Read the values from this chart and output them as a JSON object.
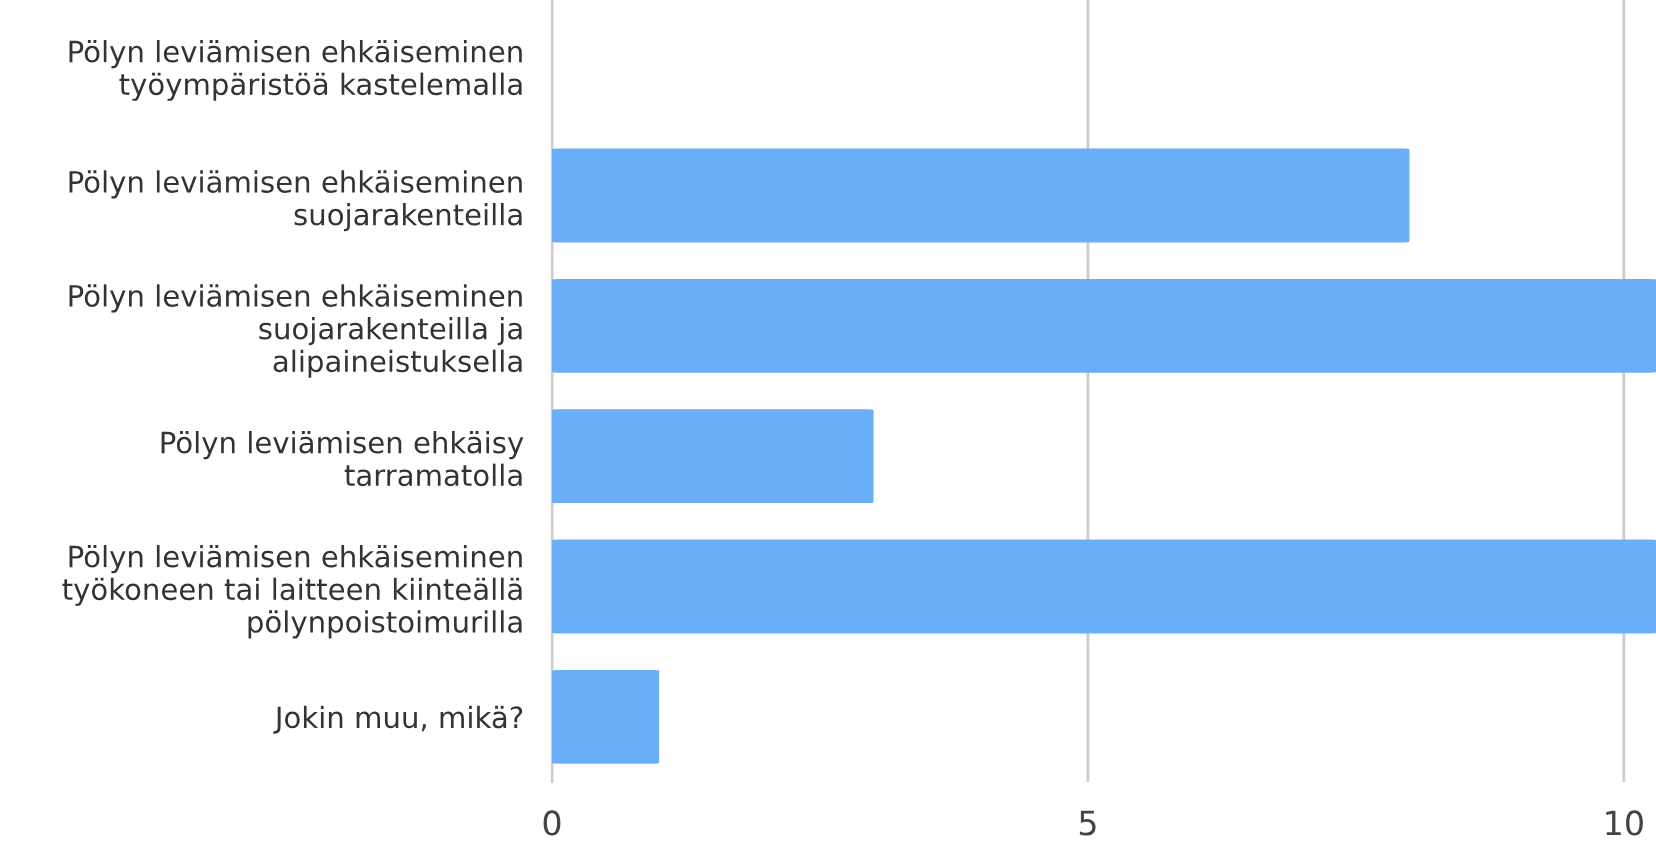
{
  "chart_data": {
    "type": "bar",
    "orientation": "horizontal",
    "categories": [
      "Pölyn leviämisen ehkäiseminen\ntyöympäristöä kastelemalla",
      "Pölyn leviämisen ehkäiseminen\nsuojarakenteilla",
      "Pölyn leviämisen ehkäiseminen\nsuojarakenteilla ja\nalipaineistuksella",
      "Pölyn leviämisen ehkäisy\ntarramatolla",
      "Pölyn leviämisen ehkäiseminen\ntyökoneen tai laitteen kiinteällä\npölynpoistoimurilla",
      "Jokin muu, mikä?"
    ],
    "values": [
      0,
      8,
      10.3,
      3,
      10.3,
      1
    ],
    "color": "#6aaef8",
    "xlim": [
      0,
      10.3
    ],
    "xticks": [
      0,
      5,
      10
    ],
    "grid": "x"
  }
}
